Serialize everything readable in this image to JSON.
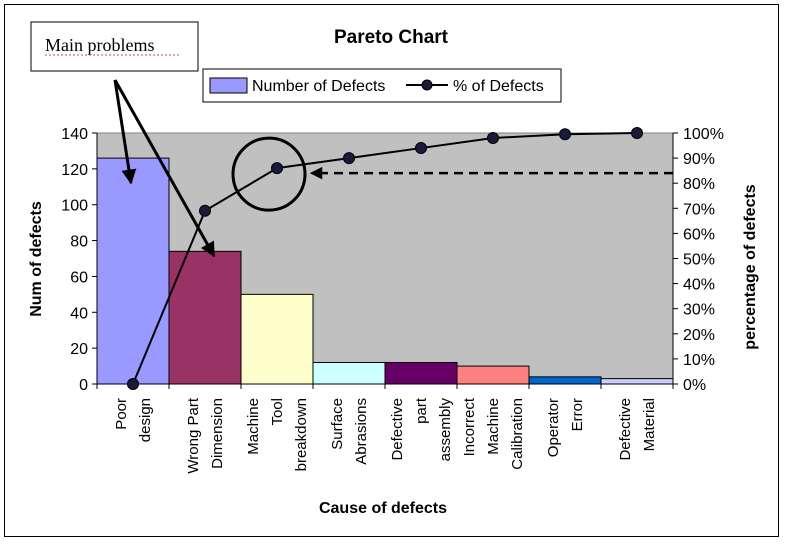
{
  "chart_data": {
    "type": "bar",
    "title": "Pareto Chart",
    "xlabel": "Cause of defects",
    "ylabel": "Num of defects",
    "y2label": "percentage of defects",
    "ylim": [
      0,
      140
    ],
    "y2lim": [
      0,
      100
    ],
    "yticks": [
      "0",
      "20",
      "40",
      "60",
      "80",
      "100",
      "120",
      "140"
    ],
    "y2ticks": [
      "0%",
      "10%",
      "20%",
      "30%",
      "40%",
      "50%",
      "60%",
      "70%",
      "80%",
      "90%",
      "100%"
    ],
    "categories": [
      [
        "Poor",
        "design"
      ],
      [
        "Wrong Part",
        "Dimension"
      ],
      [
        "Machine",
        "Tool",
        "breakdown"
      ],
      [
        "Surface",
        "Abrasions"
      ],
      [
        "Defective",
        "part",
        "assembly"
      ],
      [
        "Incorrect",
        "Machine",
        "Calibration"
      ],
      [
        "Operator",
        "Error"
      ],
      [
        "Defective",
        "Material"
      ]
    ],
    "series": [
      {
        "name": "Number of Defects",
        "kind": "bar",
        "values": [
          126,
          74,
          50,
          12,
          12,
          10,
          4,
          3
        ],
        "colors": [
          "#9999ff",
          "#993366",
          "#ffffcc",
          "#ccffff",
          "#660066",
          "#ff8080",
          "#0066cc",
          "#ccccff"
        ]
      },
      {
        "name": "% of Defects",
        "kind": "line",
        "axis": "right",
        "values": [
          0,
          69,
          86,
          90,
          94,
          98,
          99.5,
          100
        ],
        "color": "#000000"
      }
    ],
    "grid": false,
    "legend": "top-center",
    "plot_background": "#c0c0c0",
    "annotations": {
      "callout_text": "Main problems",
      "circle_on_point": 2,
      "dashed_arrow_to_percent": 84
    }
  }
}
